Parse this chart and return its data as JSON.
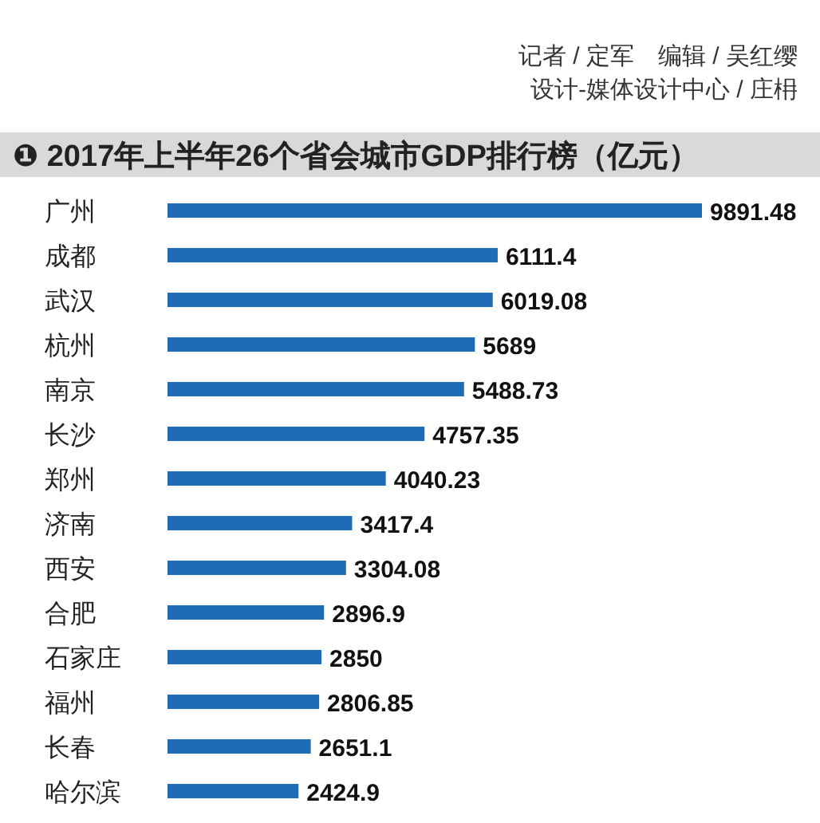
{
  "chart_data": {
    "type": "bar",
    "orientation": "horizontal",
    "title": "❶ 2017年上半年26个省会城市GDP排行榜（亿元）",
    "annotations": [
      "记者 / 定军　编辑 / 吴红缨",
      "设计-媒体设计中心 / 庄枏"
    ],
    "categories": [
      "广州",
      "成都",
      "武汉",
      "杭州",
      "南京",
      "长沙",
      "郑州",
      "济南",
      "西安",
      "合肥",
      "石家庄",
      "福州",
      "长春",
      "哈尔滨"
    ],
    "values": [
      9891.48,
      6111.4,
      6019.08,
      5689,
      5488.73,
      4757.35,
      4040.23,
      3417.4,
      3304.08,
      2896.9,
      2850,
      2806.85,
      2651.1,
      2424.9
    ],
    "color": "#1e6bb8",
    "data_labels": true
  }
}
